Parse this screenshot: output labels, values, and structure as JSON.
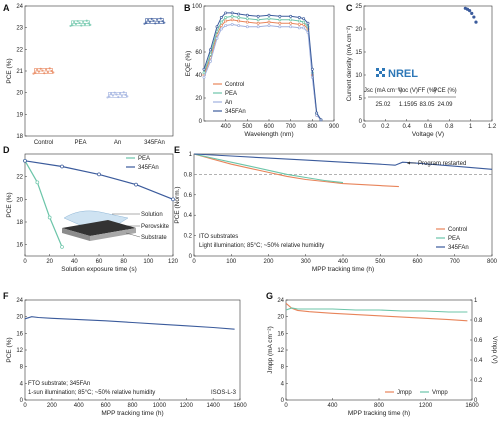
{
  "colors": {
    "control": "#e8845a",
    "pea": "#6cc5a9",
    "an": "#9fb0df",
    "fan": "#3b5b9c"
  },
  "chart_data": [
    {
      "id": "A",
      "label": "A",
      "type": "scatter",
      "categories": [
        "Control",
        "PEA",
        "An",
        "345FAn"
      ],
      "ylabel": "PCE (%)",
      "ylim": [
        18,
        24
      ],
      "yticks": [
        18,
        19,
        20,
        21,
        22,
        23,
        24
      ],
      "series": [
        {
          "values": [
            21.0,
            23.2,
            19.9,
            23.3
          ]
        }
      ]
    },
    {
      "id": "B",
      "label": "B",
      "type": "line",
      "xlabel": "Wavelength (nm)",
      "ylabel": "EQE (%)",
      "xlim": [
        300,
        900
      ],
      "ylim": [
        0,
        100
      ],
      "xticks": [
        400,
        500,
        600,
        700,
        800,
        900
      ],
      "yticks": [
        0,
        20,
        40,
        60,
        80,
        100
      ],
      "x": [
        300,
        330,
        360,
        380,
        400,
        430,
        460,
        500,
        550,
        600,
        650,
        700,
        740,
        760,
        780,
        800,
        820,
        840
      ],
      "series": [
        {
          "name": "Control",
          "values": [
            40,
            55,
            75,
            83,
            87,
            88,
            87,
            86,
            85,
            86,
            85,
            85,
            84,
            84,
            80,
            40,
            5,
            1
          ]
        },
        {
          "name": "PEA",
          "values": [
            42,
            58,
            78,
            86,
            90,
            91,
            90,
            89,
            88,
            89,
            88,
            88,
            87,
            86,
            82,
            42,
            6,
            1
          ]
        },
        {
          "name": "An",
          "values": [
            38,
            52,
            72,
            80,
            83,
            84,
            83,
            82,
            82,
            83,
            82,
            82,
            81,
            81,
            77,
            38,
            5,
            1
          ]
        },
        {
          "name": "345FAn",
          "values": [
            45,
            62,
            82,
            90,
            94,
            94,
            93,
            92,
            91,
            92,
            91,
            91,
            90,
            89,
            85,
            45,
            7,
            1
          ]
        }
      ]
    },
    {
      "id": "C",
      "label": "C",
      "type": "line",
      "xlabel": "Voltage (V)",
      "ylabel": "Current density (mA cm⁻²)",
      "xlim": [
        0,
        1.2
      ],
      "ylim": [
        0,
        25
      ],
      "xticks": [
        0,
        0.2,
        0.4,
        0.6,
        0.8,
        1.0,
        1.2
      ],
      "yticks": [
        0,
        5,
        10,
        15,
        20,
        25
      ],
      "logo": "NREL",
      "table": {
        "headers": [
          "Jsc (mA cm⁻²)",
          "Voc (V)",
          "FF (%)",
          "PCE (%)"
        ],
        "values": [
          "25.02",
          "1.1595",
          "83.05",
          "24.09"
        ]
      },
      "series": [
        {
          "x": [
            0.95,
            0.97,
            0.99,
            1.01,
            1.03,
            1.05
          ],
          "values": [
            24.5,
            24.3,
            24.0,
            23.4,
            22.6,
            21.5
          ]
        }
      ]
    },
    {
      "id": "D",
      "label": "D",
      "type": "line",
      "xlabel": "Solution exposure time (s)",
      "ylabel": "PCE (%)",
      "xlim": [
        0,
        120
      ],
      "ylim": [
        15,
        24
      ],
      "xticks": [
        0,
        20,
        40,
        60,
        80,
        100,
        120
      ],
      "yticks": [
        16,
        18,
        20,
        22
      ],
      "inset_labels": [
        "Solution",
        "Perovskite",
        "Substrate"
      ],
      "series": [
        {
          "name": "PEA",
          "x": [
            0,
            10,
            20,
            30
          ],
          "values": [
            23.4,
            21.5,
            18.4,
            15.8
          ]
        },
        {
          "name": "345FAn",
          "x": [
            0,
            30,
            60,
            90,
            120
          ],
          "values": [
            23.4,
            22.9,
            22.2,
            21.3,
            20.0
          ]
        }
      ]
    },
    {
      "id": "E",
      "label": "E",
      "type": "line",
      "xlabel": "MPP tracking time (h)",
      "ylabel": "PCE (Norm.)",
      "xlim": [
        0,
        800
      ],
      "ylim": [
        0,
        1.0
      ],
      "xticks": [
        0,
        100,
        200,
        300,
        400,
        500,
        600,
        700,
        800
      ],
      "yticks": [
        0,
        0.2,
        0.4,
        0.6,
        0.8,
        1.0
      ],
      "dashed_level": 0.8,
      "annotations": [
        "Program restarted",
        "ITO substrates",
        "Light illumination; 85°C; ~50% relative humidity"
      ],
      "series": [
        {
          "name": "Control",
          "x": [
            0,
            50,
            100,
            150,
            200,
            250,
            300,
            350,
            400,
            450,
            500,
            550
          ],
          "values": [
            1.0,
            0.95,
            0.9,
            0.86,
            0.82,
            0.78,
            0.75,
            0.73,
            0.71,
            0.7,
            0.69,
            0.68
          ]
        },
        {
          "name": "PEA",
          "x": [
            0,
            50,
            100,
            150,
            200,
            250,
            300,
            350,
            400
          ],
          "values": [
            1.0,
            0.96,
            0.92,
            0.88,
            0.84,
            0.8,
            0.77,
            0.74,
            0.72
          ]
        },
        {
          "name": "345FAn",
          "x": [
            0,
            100,
            200,
            300,
            400,
            500,
            540,
            560,
            600,
            700,
            800
          ],
          "values": [
            1.0,
            0.98,
            0.96,
            0.94,
            0.92,
            0.9,
            0.89,
            0.92,
            0.91,
            0.88,
            0.85
          ]
        }
      ]
    },
    {
      "id": "F",
      "label": "F",
      "type": "line",
      "xlabel": "MPP tracking time (h)",
      "ylabel": "PCE (%)",
      "xlim": [
        0,
        1600
      ],
      "ylim": [
        0,
        24
      ],
      "xticks": [
        0,
        200,
        400,
        600,
        800,
        1000,
        1200,
        1400,
        1600
      ],
      "yticks": [
        0,
        4,
        8,
        12,
        16,
        20,
        24
      ],
      "annotations": [
        "FTO substrate; 345FAn",
        "1-sun illumination; 85°C; ~50% relative humidity",
        "ISOS-L-3"
      ],
      "series": [
        {
          "x": [
            0,
            50,
            100,
            200,
            400,
            600,
            800,
            1000,
            1200,
            1400,
            1560
          ],
          "values": [
            19.5,
            20.0,
            19.8,
            19.6,
            19.3,
            19.0,
            18.6,
            18.2,
            17.8,
            17.4,
            17.0
          ]
        }
      ]
    },
    {
      "id": "G",
      "label": "G",
      "type": "line",
      "xlabel": "MPP tracking time (h)",
      "ylabel": "Jmpp (mA cm⁻²)",
      "ylabel2": "Vmpp (V)",
      "xlim": [
        0,
        1600
      ],
      "ylim": [
        0,
        24
      ],
      "ylim2": [
        0,
        1.0
      ],
      "xticks": [
        0,
        400,
        800,
        1200,
        1600
      ],
      "yticks": [
        0,
        4,
        8,
        12,
        16,
        20,
        24
      ],
      "yticks2": [
        0,
        0.2,
        0.4,
        0.6,
        0.8,
        1.0
      ],
      "series": [
        {
          "name": "Jmpp",
          "axis": "left",
          "x": [
            0,
            50,
            100,
            200,
            400,
            600,
            800,
            1000,
            1200,
            1400,
            1560
          ],
          "values": [
            23.2,
            22.0,
            21.5,
            21.2,
            20.8,
            20.5,
            20.2,
            19.9,
            19.6,
            19.3,
            19.0
          ]
        },
        {
          "name": "Vmpp",
          "axis": "right",
          "x": [
            0,
            50,
            100,
            200,
            400,
            600,
            800,
            1000,
            1200,
            1400,
            1560
          ],
          "values": [
            0.9,
            0.92,
            0.91,
            0.91,
            0.91,
            0.9,
            0.9,
            0.89,
            0.89,
            0.88,
            0.88
          ]
        }
      ]
    }
  ]
}
